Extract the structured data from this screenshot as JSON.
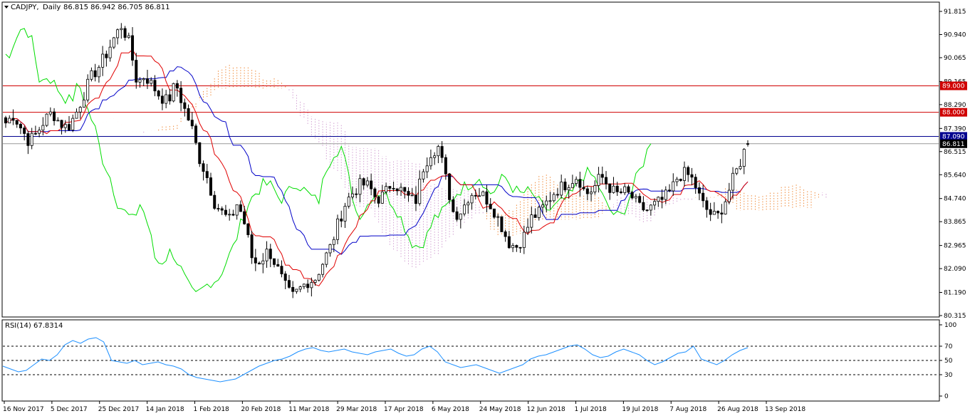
{
  "header": {
    "symbol": "CADJPY,",
    "timeframe": "Daily",
    "ohlc": "86.815 86.942 86.705 86.811"
  },
  "rsi_header": {
    "label": "RSI(14)",
    "value": "67.8314"
  },
  "colors": {
    "candle": "#000000",
    "tenkan": "#e00000",
    "kijun": "#0000c8",
    "chikou": "#00dd00",
    "kumo_bull": "#f08c3c",
    "kumo_bear": "#d2a0d2",
    "level_red": "#d00000",
    "level_blue": "#000090",
    "rsi": "#1e90ff"
  },
  "chart_data": {
    "type": "candlestick",
    "instrument": "CADJPY",
    "timeframe": "Daily",
    "price_axis": {
      "ticks": [
        "91.815",
        "90.940",
        "90.065",
        "89.165",
        "88.290",
        "87.390",
        "86.515",
        "85.640",
        "84.740",
        "83.865",
        "82.965",
        "82.090",
        "81.190",
        "80.315"
      ],
      "min": 80.315,
      "max": 91.815
    },
    "date_axis": {
      "ticks": [
        "16 Nov 2017",
        "5 Dec 2017",
        "25 Dec 2017",
        "14 Jan 2018",
        "1 Feb 2018",
        "20 Feb 2018",
        "11 Mar 2018",
        "29 Mar 2018",
        "17 Apr 2018",
        "6 May 2018",
        "24 May 2018",
        "12 Jun 2018",
        "1 Jul 2018",
        "19 Jul 2018",
        "7 Aug 2018",
        "26 Aug 2018",
        "13 Sep 2018"
      ]
    },
    "levels": [
      {
        "value": 89.0,
        "label": "89.000",
        "color": "red"
      },
      {
        "value": 88.0,
        "label": "88.000",
        "color": "red"
      },
      {
        "value": 87.09,
        "label": "87.090",
        "color": "blue"
      },
      {
        "value": 86.811,
        "label": "86.811",
        "color": "black"
      }
    ],
    "close_path": [
      87.6,
      87.9,
      87.4,
      86.9,
      87.2,
      87.7,
      88.0,
      87.6,
      87.4,
      87.9,
      88.6,
      89.3,
      89.7,
      90.2,
      90.8,
      91.3,
      90.6,
      89.1,
      89.4,
      89.0,
      88.6,
      88.4,
      89.1,
      88.2,
      87.5,
      86.3,
      85.6,
      84.6,
      84.2,
      83.9,
      84.6,
      83.7,
      82.3,
      82.4,
      82.8,
      82.2,
      81.5,
      81.0,
      81.3,
      81.6,
      81.7,
      82.3,
      82.9,
      83.8,
      84.6,
      85.0,
      85.3,
      85.2,
      84.7,
      84.9,
      85.4,
      85.1,
      84.8,
      84.6,
      85.9,
      86.5,
      86.7,
      85.4,
      84.1,
      84.3,
      84.9,
      85.0,
      84.8,
      84.4,
      83.8,
      83.1,
      82.9,
      83.3,
      84.0,
      84.2,
      84.6,
      85.0,
      85.2,
      85.4,
      85.6,
      84.9,
      85.1,
      85.6,
      85.2,
      84.9,
      85.0,
      84.8,
      84.4,
      84.3,
      84.5,
      84.7,
      85.0,
      85.6,
      85.7,
      85.4,
      84.6,
      84.2,
      84.0,
      84.6,
      85.4,
      86.1,
      86.9
    ],
    "rsi": {
      "label": "RSI(14)",
      "value": 67.8314,
      "levels": [
        70,
        50,
        30
      ],
      "ticks": [
        "100",
        "70",
        "50",
        "30",
        "0"
      ],
      "ylim": [
        0,
        100
      ],
      "values": [
        42,
        38,
        34,
        36,
        44,
        52,
        50,
        58,
        72,
        78,
        74,
        80,
        82,
        76,
        50,
        48,
        46,
        50,
        44,
        46,
        48,
        44,
        42,
        38,
        30,
        26,
        24,
        22,
        20,
        22,
        24,
        30,
        36,
        42,
        46,
        50,
        52,
        56,
        62,
        66,
        68,
        64,
        62,
        64,
        66,
        62,
        60,
        58,
        62,
        64,
        66,
        60,
        56,
        58,
        66,
        70,
        62,
        48,
        44,
        40,
        42,
        44,
        40,
        36,
        32,
        36,
        40,
        44,
        52,
        56,
        58,
        62,
        66,
        70,
        72,
        66,
        58,
        54,
        56,
        62,
        66,
        62,
        58,
        50,
        44,
        48,
        54,
        60,
        62,
        70,
        52,
        48,
        44,
        50,
        58,
        64,
        68
      ]
    }
  }
}
